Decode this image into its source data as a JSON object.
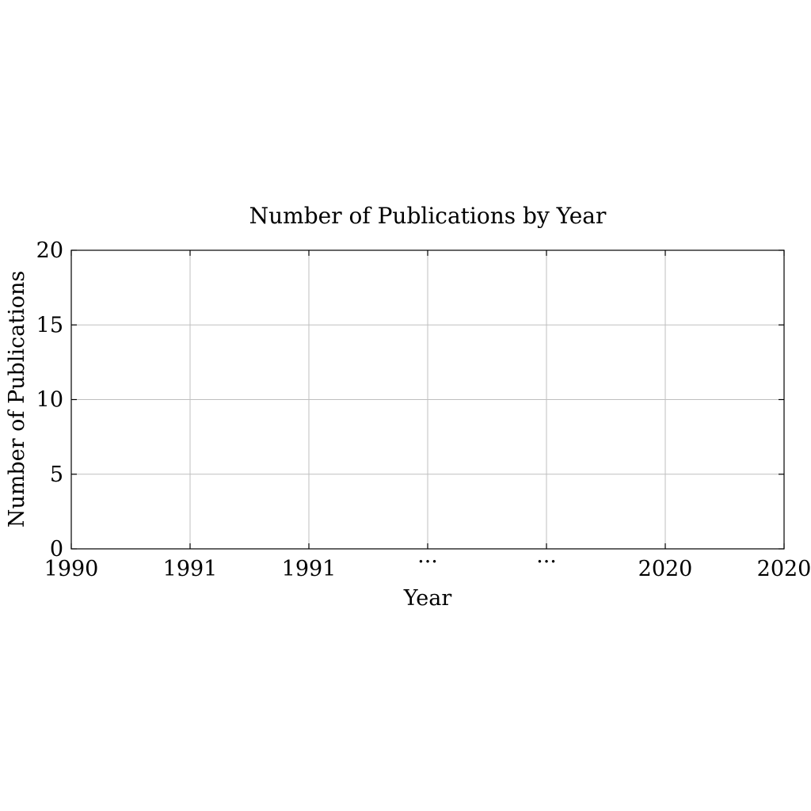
{
  "chart_data": {
    "type": "line",
    "title": "Number of Publications by Year",
    "xlabel": "Year",
    "ylabel": "Number of Publications",
    "x_tick_labels": [
      "1990",
      "1991",
      "1991",
      "...",
      "...",
      "2020",
      "2020"
    ],
    "y_ticks": [
      0,
      5,
      10,
      15,
      20
    ],
    "ylim": [
      0,
      20
    ],
    "grid": true,
    "series": []
  }
}
